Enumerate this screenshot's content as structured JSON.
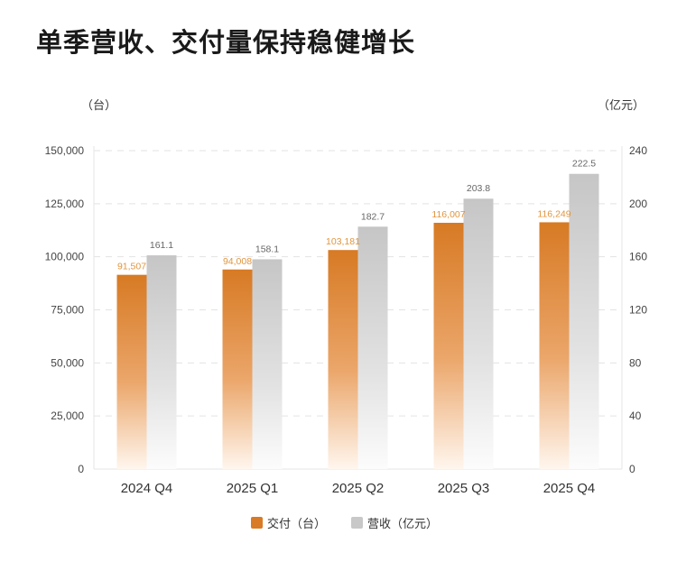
{
  "title": "单季营收、交付量保持稳健增长",
  "chart_data": {
    "type": "bar",
    "title": "单季营收、交付量保持稳健增长",
    "categories": [
      "2024 Q4",
      "2025 Q1",
      "2025 Q2",
      "2025 Q3",
      "2025 Q4"
    ],
    "series": [
      {
        "name": "交付（台）",
        "axis": "left",
        "color": "#d97a26",
        "values": [
          91507,
          94008,
          103181,
          116007,
          116249
        ],
        "labels": [
          "91,507",
          "94,008",
          "103,181",
          "116,007",
          "116,249"
        ]
      },
      {
        "name": "营收（亿元）",
        "axis": "right",
        "color": "#c8c8c8",
        "values": [
          161.1,
          158.1,
          182.7,
          203.8,
          222.5
        ],
        "labels": [
          "161.1",
          "158.1",
          "182.7",
          "203.8",
          "222.5"
        ]
      }
    ],
    "ylabel": "（台）",
    "y2label": "（亿元）",
    "ylim": [
      0,
      150000
    ],
    "y2lim": [
      0,
      240
    ],
    "yticks": [
      "0",
      "25,000",
      "50,000",
      "75,000",
      "100,000",
      "125,000",
      "150,000"
    ],
    "y2ticks": [
      "0",
      "40",
      "80",
      "120",
      "160",
      "200",
      "240"
    ],
    "grid": true,
    "legend": "bottom-center"
  }
}
